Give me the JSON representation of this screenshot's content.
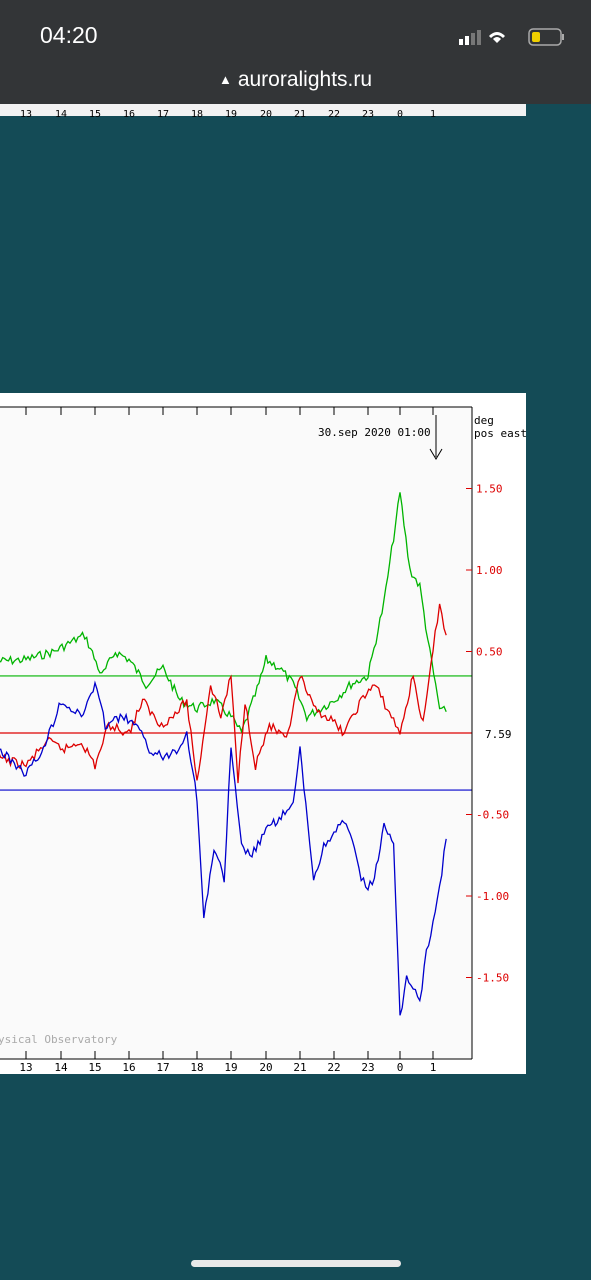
{
  "status_bar": {
    "time": "04:20",
    "url": "auroralights.ru"
  },
  "hours": [
    "13",
    "14",
    "15",
    "16",
    "17",
    "18",
    "19",
    "20",
    "21",
    "22",
    "23",
    "0",
    "1"
  ],
  "chart": {
    "timestamp": "30.sep 2020 01:00",
    "unit_line1": "deg",
    "unit_line2": "pos east",
    "baseline_label": "7.59",
    "right_ticks": [
      "1.50",
      "1.00",
      "0.50",
      "-0.50",
      "-1.00",
      "-1.50"
    ],
    "watermark": "ysical Observatory"
  },
  "chart_data": {
    "type": "line",
    "y_unit": "deg",
    "baseline_value": 7.59,
    "ylim": [
      -2.0,
      1.75
    ],
    "x_ticks": [
      "13",
      "14",
      "15",
      "16",
      "17",
      "18",
      "19",
      "20",
      "21",
      "22",
      "23",
      "0",
      "1"
    ],
    "series": [
      {
        "color": "#00b400",
        "x": [
          12.2,
          13,
          13.8,
          14.5,
          14.7,
          15.2,
          15.6,
          16,
          16.5,
          17,
          17.5,
          18,
          18.5,
          19,
          19.3,
          19.8,
          20,
          20.4,
          20.8,
          21.2,
          21.6,
          22,
          22.5,
          23,
          23.5,
          23.8,
          24,
          24.3,
          24.6,
          24.9,
          25.2,
          25.4
        ],
        "y": [
          0.44,
          0.45,
          0.5,
          0.58,
          0.6,
          0.35,
          0.5,
          0.45,
          0.3,
          0.4,
          0.2,
          0.15,
          0.2,
          0.1,
          0.0,
          0.3,
          0.45,
          0.4,
          0.3,
          0.1,
          0.15,
          0.2,
          0.3,
          0.35,
          0.8,
          1.2,
          1.47,
          1.0,
          0.9,
          0.5,
          0.15,
          0.13
        ]
      },
      {
        "color": "#dd0000",
        "x": [
          12.2,
          13,
          13.6,
          14.1,
          14.6,
          15,
          15.4,
          16,
          16.4,
          16.9,
          17.3,
          17.7,
          18,
          18.4,
          18.7,
          19,
          19.2,
          19.4,
          19.7,
          20.1,
          20.6,
          21,
          21.4,
          21.8,
          22.3,
          22.8,
          23.2,
          23.6,
          24,
          24.4,
          24.7,
          25,
          25.2,
          25.4
        ],
        "y": [
          -0.15,
          -0.2,
          -0.05,
          -0.1,
          -0.05,
          -0.2,
          0.05,
          0.0,
          0.2,
          0.05,
          0.1,
          0.2,
          -0.3,
          0.3,
          0.1,
          0.35,
          -0.3,
          0.2,
          -0.2,
          0.05,
          -0.05,
          0.35,
          0.15,
          0.1,
          0.0,
          0.2,
          0.3,
          0.15,
          0.0,
          0.35,
          0.05,
          0.5,
          0.8,
          0.6
        ]
      },
      {
        "color": "#0000cc",
        "x": [
          12.2,
          13,
          13.5,
          14,
          14.6,
          15,
          15.3,
          15.8,
          16.2,
          16.6,
          17,
          17.4,
          17.7,
          18,
          18.2,
          18.5,
          18.8,
          19,
          19.3,
          19.6,
          20,
          20.5,
          20.8,
          21,
          21.4,
          21.7,
          22,
          22.3,
          22.6,
          22.8,
          23,
          23.2,
          23.5,
          23.8,
          24,
          24.2,
          24.4,
          24.6,
          24.8,
          25,
          25.2,
          25.4
        ],
        "y": [
          -0.1,
          -0.25,
          -0.1,
          0.2,
          0.1,
          0.3,
          0.05,
          0.1,
          0.05,
          -0.1,
          -0.15,
          -0.1,
          0.0,
          -0.4,
          -1.15,
          -0.7,
          -0.9,
          -0.1,
          -0.7,
          -0.75,
          -0.6,
          -0.5,
          -0.45,
          -0.1,
          -0.9,
          -0.7,
          -0.6,
          -0.55,
          -0.7,
          -0.9,
          -0.95,
          -0.9,
          -0.55,
          -0.7,
          -1.75,
          -1.5,
          -1.55,
          -1.65,
          -1.35,
          -1.15,
          -0.95,
          -0.65
        ]
      }
    ],
    "reference_lines": [
      {
        "color": "#00b400",
        "value": 0.35
      },
      {
        "color": "#dd0000",
        "value": 0.0
      },
      {
        "color": "#0000cc",
        "value": -0.35
      }
    ]
  }
}
